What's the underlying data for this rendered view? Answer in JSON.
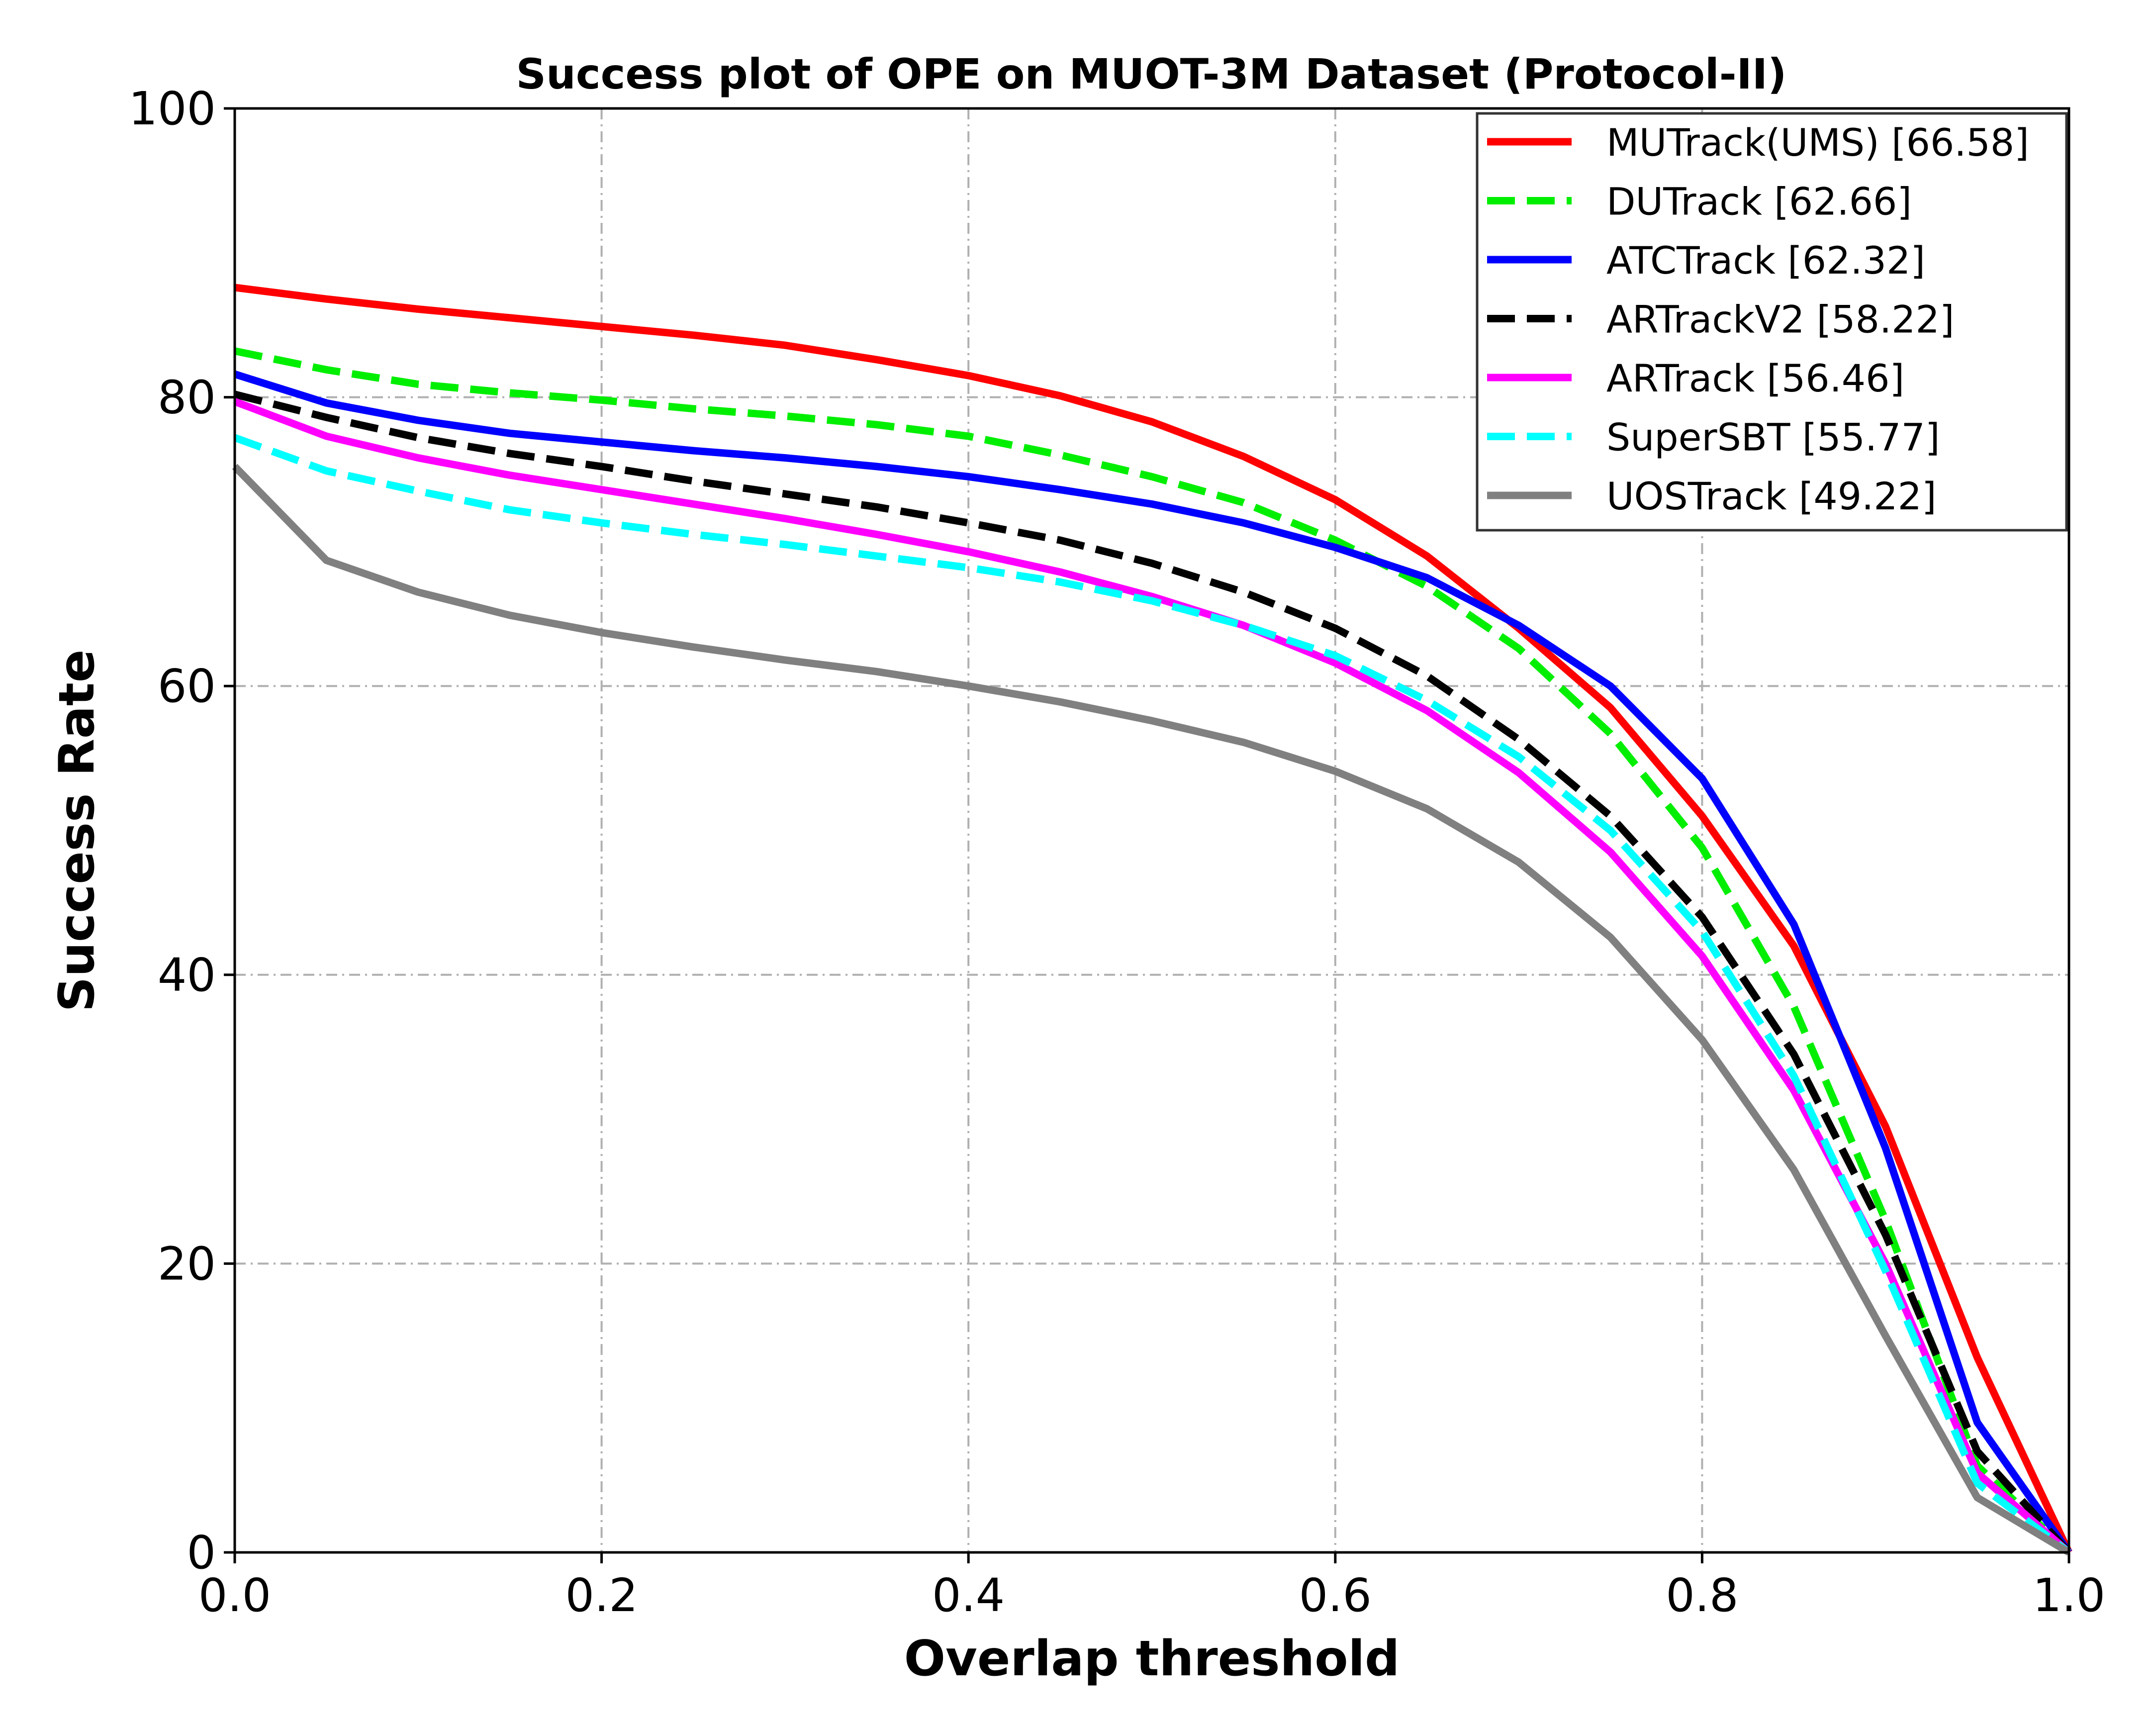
{
  "chart_data": {
    "type": "line",
    "title": "Success plot of OPE on MUOT-3M Dataset (Protocol-II)",
    "xlabel": "Overlap threshold",
    "ylabel": "Success Rate",
    "xlim": [
      0.0,
      1.0
    ],
    "ylim": [
      0,
      100
    ],
    "xticks": [
      "0.0",
      "0.2",
      "0.4",
      "0.6",
      "0.8",
      "1.0"
    ],
    "yticks": [
      "0",
      "20",
      "40",
      "60",
      "80",
      "100"
    ],
    "grid": true,
    "legend_position": "top-right",
    "x": [
      0.0,
      0.05,
      0.1,
      0.15,
      0.2,
      0.25,
      0.3,
      0.35,
      0.4,
      0.45,
      0.5,
      0.55,
      0.6,
      0.65,
      0.7,
      0.75,
      0.8,
      0.85,
      0.9,
      0.95,
      1.0
    ],
    "series": [
      {
        "name": "MUTrack(UMS) [66.58]",
        "color": "#ff0000",
        "style": "solid",
        "values": [
          87.6,
          86.8,
          86.1,
          85.5,
          84.9,
          84.3,
          83.6,
          82.6,
          81.5,
          80.1,
          78.3,
          75.9,
          72.9,
          69.0,
          64.0,
          58.5,
          51.0,
          42.0,
          29.5,
          13.5,
          0.0
        ]
      },
      {
        "name": "DUTrack [62.66]",
        "color": "#00ee00",
        "style": "dashed",
        "values": [
          83.2,
          81.9,
          80.9,
          80.3,
          79.8,
          79.2,
          78.7,
          78.1,
          77.3,
          76.0,
          74.5,
          72.7,
          70.1,
          66.9,
          62.6,
          56.7,
          48.8,
          37.8,
          23.0,
          6.0,
          0.0
        ]
      },
      {
        "name": "ATCTrack [62.32]",
        "color": "#0000ff",
        "style": "solid",
        "values": [
          81.6,
          79.6,
          78.4,
          77.5,
          76.9,
          76.3,
          75.8,
          75.2,
          74.5,
          73.6,
          72.6,
          71.3,
          69.6,
          67.5,
          64.2,
          60.0,
          53.6,
          43.5,
          28.0,
          9.0,
          0.0
        ]
      },
      {
        "name": "ARTrackV2 [58.22]",
        "color": "#000000",
        "style": "dashed",
        "values": [
          80.2,
          78.6,
          77.2,
          76.1,
          75.2,
          74.2,
          73.3,
          72.4,
          71.3,
          70.1,
          68.5,
          66.5,
          64.0,
          60.7,
          56.3,
          51.0,
          44.0,
          34.5,
          22.0,
          7.0,
          0.0
        ]
      },
      {
        "name": "ARTrack [56.46]",
        "color": "#ff00ff",
        "style": "solid",
        "values": [
          79.7,
          77.3,
          75.8,
          74.6,
          73.6,
          72.6,
          71.6,
          70.5,
          69.3,
          67.9,
          66.2,
          64.2,
          61.6,
          58.3,
          54.0,
          48.5,
          41.3,
          32.0,
          20.0,
          5.5,
          0.0
        ]
      },
      {
        "name": "SuperSBT [55.77]",
        "color": "#00ffff",
        "style": "dashed",
        "values": [
          77.2,
          74.9,
          73.5,
          72.2,
          71.3,
          70.5,
          69.8,
          69.0,
          68.2,
          67.2,
          65.9,
          64.2,
          62.1,
          59.0,
          55.1,
          50.0,
          43.0,
          33.0,
          19.5,
          4.8,
          0.0
        ]
      },
      {
        "name": "UOSTrack [49.22]",
        "color": "#808080",
        "style": "solid",
        "values": [
          75.2,
          68.7,
          66.5,
          64.9,
          63.7,
          62.7,
          61.8,
          61.0,
          60.0,
          58.9,
          57.6,
          56.1,
          54.1,
          51.5,
          47.8,
          42.6,
          35.5,
          26.5,
          15.0,
          3.8,
          0.0
        ]
      }
    ]
  }
}
